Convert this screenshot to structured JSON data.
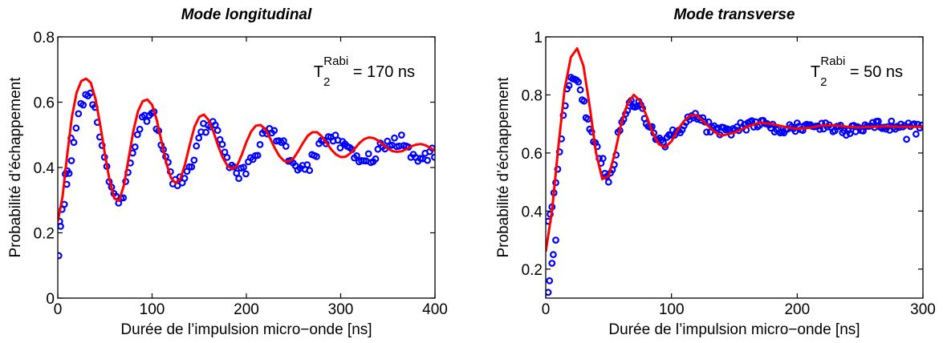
{
  "chart_data": [
    {
      "type": "scatter",
      "title": "Mode longitudinal",
      "xlabel": "Durée de l’impulsion micro−onde [ns]",
      "ylabel": "Probabilité d’échappement",
      "xlim": [
        0,
        400
      ],
      "ylim": [
        0,
        0.8
      ],
      "xticks": [
        0,
        100,
        200,
        300,
        400
      ],
      "yticks": [
        0,
        0.2,
        0.4,
        0.6,
        0.8
      ],
      "xtick_labels": [
        "0",
        "100",
        "200",
        "300",
        "400"
      ],
      "ytick_labels": [
        "0",
        "0.2",
        "0.4",
        "0.6",
        "0.8"
      ],
      "grid": false,
      "annotation": {
        "main": "T",
        "sub": "2",
        "sup": "Rabi",
        "rest": " = 170 ns"
      },
      "fit": {
        "color": "#ff0000",
        "offset": 0.45,
        "amplitude": 0.22,
        "period_ns": 65,
        "peak_ns": 32,
        "decay_ns": 170
      },
      "data_points": {
        "color": "#0000ff",
        "x_step_ns": 2.5,
        "x_max_ns": 400
      },
      "series": [
        {
          "kind": "line",
          "color": "#ff0000",
          "x": [
            0,
            5,
            10,
            15,
            20,
            25,
            30,
            35,
            40,
            45,
            50,
            55,
            60,
            65,
            70,
            75,
            80,
            85,
            90,
            95,
            100,
            105,
            110,
            115,
            120,
            125,
            130,
            135,
            140,
            145,
            150,
            155,
            160,
            165,
            170,
            175,
            180,
            185,
            190,
            195,
            200,
            205,
            210,
            215,
            220,
            225,
            230,
            235,
            240,
            245,
            250,
            255,
            260,
            265,
            270,
            275,
            280,
            285,
            290,
            295,
            300,
            305,
            310,
            315,
            320,
            325,
            330,
            335,
            340,
            345,
            350,
            355,
            360,
            365,
            370,
            375,
            380,
            385,
            390,
            395,
            400
          ],
          "y": [
            0.235,
            0.31,
            0.44,
            0.555,
            0.63,
            0.665,
            0.672,
            0.66,
            0.61,
            0.53,
            0.44,
            0.36,
            0.305,
            0.298,
            0.345,
            0.425,
            0.51,
            0.572,
            0.603,
            0.608,
            0.592,
            0.545,
            0.48,
            0.415,
            0.368,
            0.352,
            0.365,
            0.41,
            0.47,
            0.525,
            0.555,
            0.562,
            0.545,
            0.51,
            0.466,
            0.43,
            0.405,
            0.395,
            0.405,
            0.438,
            0.478,
            0.51,
            0.528,
            0.53,
            0.518,
            0.49,
            0.46,
            0.435,
            0.42,
            0.418,
            0.428,
            0.45,
            0.475,
            0.497,
            0.508,
            0.508,
            0.495,
            0.475,
            0.455,
            0.44,
            0.432,
            0.433,
            0.443,
            0.458,
            0.475,
            0.487,
            0.492,
            0.49,
            0.482,
            0.47,
            0.458,
            0.45,
            0.448,
            0.45,
            0.457,
            0.465,
            0.47,
            0.472,
            0.468,
            0.46,
            0.452
          ]
        }
      ]
    },
    {
      "type": "scatter",
      "title": "Mode transverse",
      "xlabel": "Durée de l’impulsion micro−onde [ns]",
      "ylabel": "Probabilité d’échappement",
      "xlim": [
        0,
        300
      ],
      "ylim": [
        0.1,
        1.0
      ],
      "xticks": [
        0,
        100,
        200,
        300
      ],
      "yticks": [
        0.2,
        0.4,
        0.6,
        0.8,
        1.0
      ],
      "xtick_labels": [
        "0",
        "100",
        "200",
        "300"
      ],
      "ytick_labels": [
        "0.2",
        "0.4",
        "0.6",
        "0.8",
        "1"
      ],
      "grid": false,
      "annotation": {
        "main": "T",
        "sub": "2",
        "sup": "Rabi",
        "rest": " = 50 ns"
      },
      "fit": {
        "color": "#ff0000",
        "offset": 0.69,
        "amplitude": 0.34,
        "period_ns": 47,
        "peak_ns": 25,
        "decay_ns": 50
      },
      "data_points": {
        "color": "#0000ff",
        "x_step_ns": 1.5,
        "x_max_ns": 300
      },
      "series": [
        {
          "kind": "line",
          "color": "#ff0000",
          "x": [
            0,
            5,
            10,
            15,
            20,
            25,
            30,
            35,
            40,
            45,
            50,
            55,
            60,
            65,
            70,
            75,
            80,
            85,
            90,
            95,
            100,
            105,
            110,
            115,
            120,
            125,
            130,
            135,
            140,
            145,
            150,
            160,
            170,
            180,
            190,
            200,
            210,
            220,
            230,
            240,
            250,
            260,
            270,
            280,
            290,
            300
          ],
          "y": [
            0.26,
            0.4,
            0.62,
            0.82,
            0.93,
            0.96,
            0.9,
            0.76,
            0.6,
            0.51,
            0.52,
            0.6,
            0.7,
            0.77,
            0.8,
            0.78,
            0.73,
            0.67,
            0.63,
            0.62,
            0.64,
            0.68,
            0.71,
            0.73,
            0.73,
            0.71,
            0.69,
            0.67,
            0.66,
            0.665,
            0.67,
            0.69,
            0.705,
            0.7,
            0.69,
            0.683,
            0.687,
            0.695,
            0.695,
            0.69,
            0.688,
            0.69,
            0.692,
            0.69,
            0.69,
            0.69
          ]
        }
      ]
    }
  ]
}
